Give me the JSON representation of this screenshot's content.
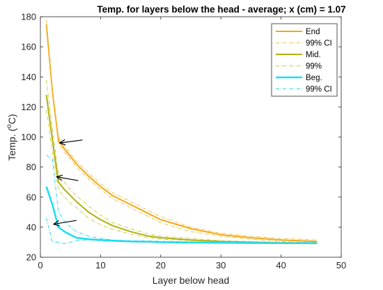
{
  "chart_data": {
    "type": "line",
    "title": "Temp. for layers below the head - average; x (cm) = 1.07",
    "xlabel": "Layer below head",
    "ylabel": "Temp. (°C)",
    "ylabel_parts": {
      "prefix": "Temp. (",
      "superscript": "o",
      "suffix": "C)"
    },
    "xlim": [
      0,
      50
    ],
    "ylim": [
      20,
      180
    ],
    "xticks": [
      0,
      10,
      20,
      30,
      40,
      50
    ],
    "yticks": [
      20,
      40,
      60,
      80,
      100,
      120,
      140,
      160,
      180
    ],
    "grid": false,
    "legend_position": "top-right",
    "legend": [
      "End",
      "99% CI",
      "Mid.",
      "99%",
      "Beg.",
      "99% CI"
    ],
    "series": [
      {
        "name": "End",
        "color": "#f0a818",
        "width": 2,
        "dash": "none",
        "x": [
          1,
          2,
          3,
          4,
          5,
          6,
          8,
          10,
          12,
          15,
          18,
          20,
          25,
          30,
          35,
          40,
          46
        ],
        "y": [
          175,
          130,
          98,
          92,
          87,
          82,
          74,
          67,
          61,
          55,
          49,
          45,
          39,
          35,
          33,
          31.5,
          30.5
        ]
      },
      {
        "name": "End 99% CI upper",
        "color": "#f0c040",
        "width": 1,
        "dash": "5,2,1,2",
        "x": [
          1,
          2,
          3,
          4,
          5,
          6,
          8,
          10,
          12,
          15,
          18,
          20,
          25,
          30,
          35,
          40,
          46
        ],
        "y": [
          178,
          132,
          100,
          94,
          89,
          84,
          76,
          69,
          63,
          57,
          51,
          47,
          40,
          36,
          34,
          32.5,
          31.5
        ]
      },
      {
        "name": "End 99% CI lower",
        "color": "#f0c040",
        "width": 1,
        "dash": "5,2,1,2",
        "x": [
          1,
          2,
          3,
          4,
          5,
          6,
          8,
          10,
          12,
          15,
          18,
          20,
          25,
          30,
          35,
          40,
          46
        ],
        "y": [
          172,
          128,
          96,
          90,
          85,
          80,
          72,
          65,
          59,
          53,
          47,
          43,
          37,
          34,
          32,
          30.5,
          29.5
        ]
      },
      {
        "name": "Mid.",
        "color": "#b0b010",
        "width": 2,
        "dash": "none",
        "x": [
          1,
          2,
          3,
          4,
          5,
          6,
          8,
          10,
          12,
          15,
          18,
          20,
          25,
          30,
          35,
          40,
          46
        ],
        "y": [
          128,
          98,
          70,
          65,
          61,
          57,
          50,
          45,
          41,
          37,
          34,
          33,
          31.5,
          30.5,
          30,
          29.5,
          29.5
        ]
      },
      {
        "name": "Mid. 99% upper",
        "color": "#c8cc40",
        "width": 1,
        "dash": "5,2,1,2",
        "x": [
          1,
          2,
          3,
          4,
          5,
          6,
          8,
          10,
          12,
          15,
          18,
          20,
          25,
          30,
          35,
          40,
          46
        ],
        "y": [
          138,
          105,
          75,
          70,
          65,
          61,
          54,
          48,
          43,
          39,
          35.5,
          34,
          32.5,
          31,
          30.5,
          30,
          30
        ]
      },
      {
        "name": "Mid. 99% lower",
        "color": "#c8cc40",
        "width": 1,
        "dash": "5,2,1,2",
        "x": [
          1,
          2,
          3,
          4,
          5,
          6,
          8,
          10,
          12,
          15,
          18,
          20,
          25,
          30,
          35,
          40,
          46
        ],
        "y": [
          118,
          90,
          65,
          60,
          56,
          53,
          46,
          41.5,
          38.5,
          35.5,
          33,
          32,
          31,
          30,
          29.5,
          29,
          29
        ]
      },
      {
        "name": "Beg.",
        "color": "#18e0f0",
        "width": 2.5,
        "dash": "none",
        "x": [
          1,
          2,
          3,
          4,
          5,
          6,
          8,
          10,
          12,
          15,
          18,
          20,
          25,
          30,
          35,
          40,
          46
        ],
        "y": [
          67,
          55,
          40,
          37,
          35,
          33,
          32,
          31.5,
          31,
          30.5,
          30.3,
          30,
          29.8,
          29.6,
          29.5,
          29.4,
          29.3
        ]
      },
      {
        "name": "Beg. 99% CI upper",
        "color": "#30d0f0",
        "width": 1,
        "dash": "5,2,1,2",
        "x": [
          1,
          2,
          3,
          4,
          5,
          6,
          8,
          10,
          12,
          15,
          18,
          20,
          25,
          30,
          35,
          40,
          46
        ],
        "y": [
          88,
          85,
          50,
          44,
          40,
          37,
          34,
          32.5,
          31.5,
          31,
          30.8,
          30.6,
          30.3,
          30,
          29.9,
          29.8,
          29.7
        ]
      },
      {
        "name": "Beg. 99% CI lower",
        "color": "#30d0f0",
        "width": 1,
        "dash": "5,2,1,2",
        "x": [
          1,
          2,
          3,
          4,
          5,
          6,
          8,
          10,
          12,
          15,
          18,
          20,
          25,
          30,
          35,
          40,
          46
        ],
        "y": [
          46,
          30,
          30,
          29,
          30,
          31,
          31.5,
          31,
          30.6,
          30.2,
          30,
          29.8,
          29.5,
          29.3,
          29.2,
          29.1,
          29
        ]
      }
    ],
    "annotations": [
      {
        "type": "arrow",
        "from": [
          7,
          98
        ],
        "to": [
          3.2,
          96
        ]
      },
      {
        "type": "arrow",
        "from": [
          6.3,
          71
        ],
        "to": [
          2.7,
          73.5
        ]
      },
      {
        "type": "arrow",
        "from": [
          6,
          44.5
        ],
        "to": [
          2.2,
          42
        ]
      }
    ]
  }
}
